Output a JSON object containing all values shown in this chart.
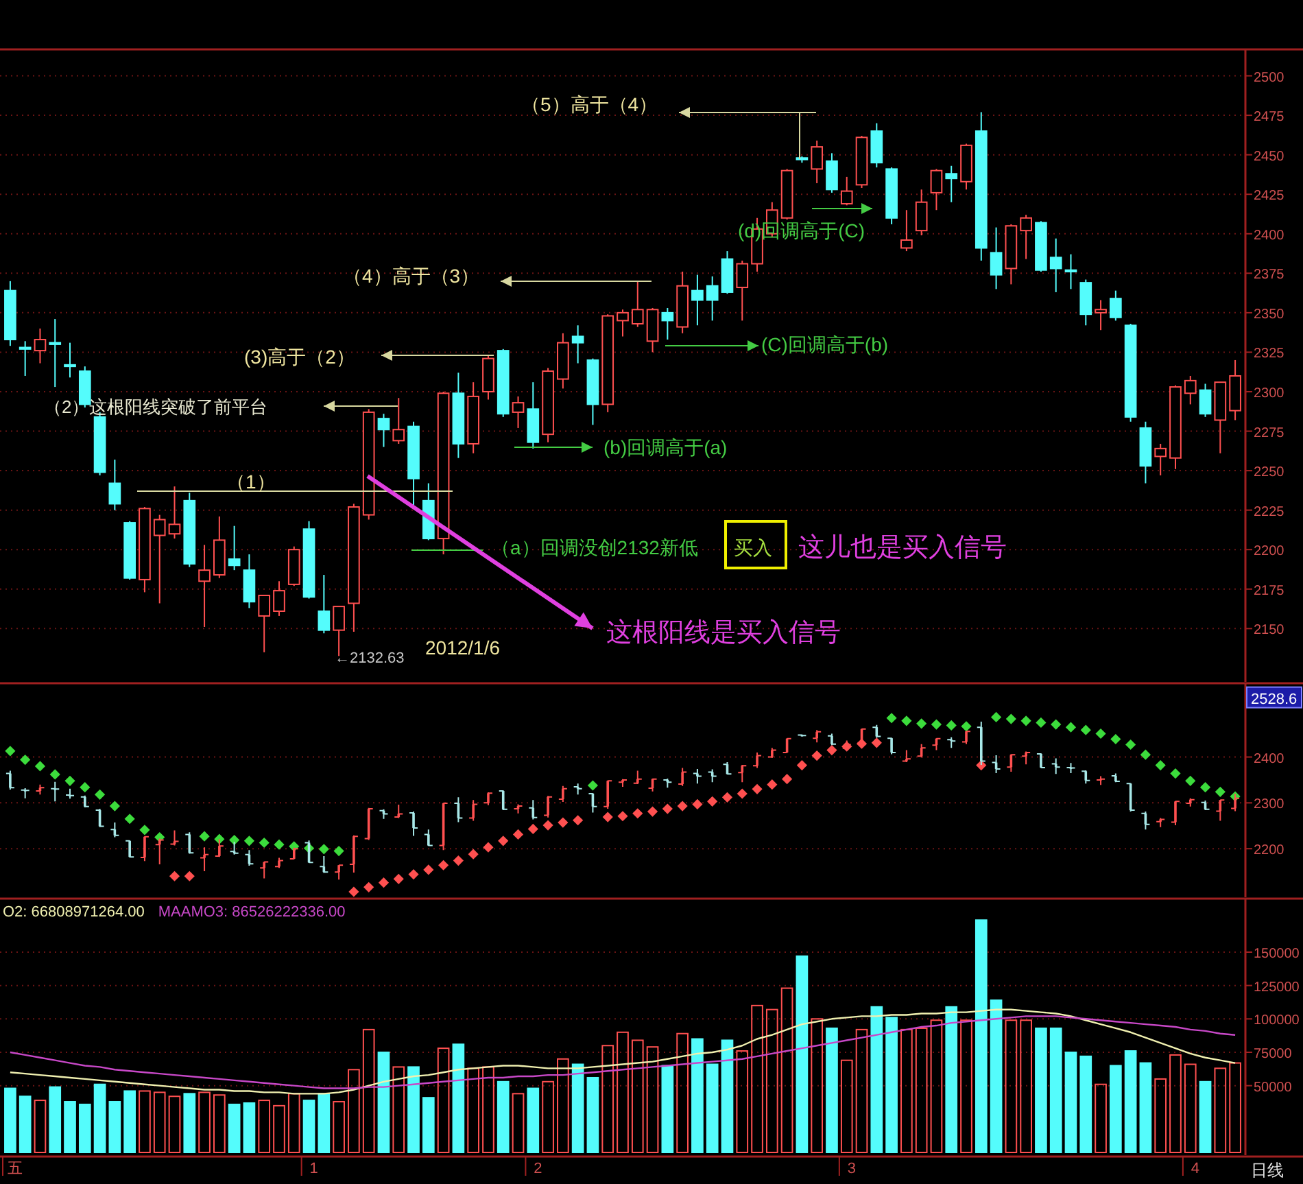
{
  "chart_data": [
    {
      "type": "candlestick",
      "categories": [
        null,
        null,
        null,
        null,
        null,
        null,
        null,
        null,
        null,
        null,
        null,
        null,
        null,
        null,
        null,
        null,
        null,
        null,
        null,
        null,
        null,
        null,
        null,
        null,
        null,
        null,
        null,
        null,
        null,
        null,
        null,
        null,
        null,
        null,
        null,
        null,
        null,
        null,
        null,
        null,
        null,
        null,
        null,
        null,
        null,
        null,
        null,
        null,
        null,
        null,
        null,
        null,
        null,
        null,
        null,
        null,
        null,
        null,
        null,
        null,
        null,
        null,
        null,
        null,
        null,
        null,
        null,
        null,
        null,
        null,
        null,
        null,
        null,
        null,
        null,
        null,
        null,
        null,
        null,
        null,
        null,
        null,
        null
      ],
      "ohlc": [
        [
          2364,
          2370,
          2329,
          2333
        ],
        [
          2328,
          2332,
          2310,
          2327
        ],
        [
          2326,
          2340,
          2318,
          2333
        ],
        [
          2331,
          2346,
          2303,
          2330
        ],
        [
          2317,
          2331,
          2309,
          2316
        ],
        [
          2313,
          2316,
          2290,
          2292
        ],
        [
          2284,
          2287,
          2247,
          2249
        ],
        [
          2242,
          2257,
          2225,
          2229
        ],
        [
          2217,
          2218,
          2181,
          2182
        ],
        [
          2181,
          2227,
          2173,
          2226
        ],
        [
          2209,
          2222,
          2166,
          2219
        ],
        [
          2210,
          2240,
          2207,
          2216
        ],
        [
          2231,
          2236,
          2189,
          2191
        ],
        [
          2180,
          2203,
          2151,
          2187
        ],
        [
          2184,
          2221,
          2182,
          2206
        ],
        [
          2194,
          2215,
          2187,
          2190
        ],
        [
          2187,
          2197,
          2163,
          2167
        ],
        [
          2158,
          2171,
          2135,
          2171
        ],
        [
          2161,
          2180,
          2158,
          2174
        ],
        [
          2178,
          2202,
          2177,
          2200
        ],
        [
          2213,
          2218,
          2169,
          2170
        ],
        [
          2161,
          2184,
          2147,
          2149
        ],
        [
          2149,
          2164,
          2132.63,
          2164
        ],
        [
          2166,
          2229,
          2148,
          2227
        ],
        [
          2222,
          2289,
          2219,
          2287
        ],
        [
          2283,
          2286,
          2265,
          2276
        ],
        [
          2269,
          2296,
          2267,
          2276
        ],
        [
          2278,
          2281,
          2228,
          2245
        ],
        [
          2231,
          2242,
          2206,
          2207
        ],
        [
          2207,
          2300,
          2197,
          2299
        ],
        [
          2299,
          2312,
          2258,
          2267
        ],
        [
          2267,
          2306,
          2261,
          2297
        ],
        [
          2300,
          2323,
          2295,
          2321
        ],
        [
          2326,
          2327,
          2284,
          2286
        ],
        [
          2287,
          2297,
          2277,
          2293
        ],
        [
          2289,
          2306,
          2264,
          2268
        ],
        [
          2273,
          2315,
          2268,
          2313
        ],
        [
          2308,
          2337,
          2302,
          2331
        ],
        [
          2335,
          2342,
          2318,
          2331
        ],
        [
          2320,
          2321,
          2279,
          2292
        ],
        [
          2292,
          2349,
          2287,
          2348
        ],
        [
          2345,
          2352,
          2335,
          2350
        ],
        [
          2343,
          2370,
          2341,
          2352
        ],
        [
          2332,
          2353,
          2325,
          2352
        ],
        [
          2350,
          2353,
          2333,
          2345
        ],
        [
          2341,
          2376,
          2337,
          2367
        ],
        [
          2364,
          2374,
          2342,
          2358
        ],
        [
          2367,
          2373,
          2345,
          2358
        ],
        [
          2384,
          2389,
          2362,
          2363
        ],
        [
          2366,
          2383,
          2345,
          2381
        ],
        [
          2381,
          2410,
          2376,
          2403
        ],
        [
          2400,
          2420,
          2398,
          2415
        ],
        [
          2410,
          2441,
          2409,
          2440
        ],
        [
          2448,
          2449,
          2445,
          2447
        ],
        [
          2441,
          2459,
          2432,
          2455
        ],
        [
          2446,
          2451,
          2426,
          2428
        ],
        [
          2419,
          2436,
          2418,
          2427
        ],
        [
          2431,
          2462,
          2429,
          2461
        ],
        [
          2465,
          2470,
          2442,
          2445
        ],
        [
          2441,
          2442,
          2406,
          2410
        ],
        [
          2391,
          2415,
          2389,
          2396
        ],
        [
          2402,
          2428,
          2399,
          2420
        ],
        [
          2426,
          2441,
          2415,
          2440
        ],
        [
          2438,
          2443,
          2420,
          2435
        ],
        [
          2433,
          2457,
          2428,
          2456
        ],
        [
          2465,
          2477,
          2383,
          2391
        ],
        [
          2388,
          2404,
          2365,
          2374
        ],
        [
          2378,
          2406,
          2368,
          2405
        ],
        [
          2402,
          2412,
          2384,
          2410
        ],
        [
          2407,
          2408,
          2376,
          2377
        ],
        [
          2385,
          2397,
          2363,
          2378
        ],
        [
          2377,
          2387,
          2365,
          2376
        ],
        [
          2369,
          2371,
          2342,
          2349
        ],
        [
          2350,
          2358,
          2339,
          2352
        ],
        [
          2359,
          2364,
          2345,
          2347
        ],
        [
          2342,
          2343,
          2281,
          2284
        ],
        [
          2277,
          2281,
          2242,
          2253
        ],
        [
          2259,
          2267,
          2247,
          2264
        ],
        [
          2258,
          2304,
          2251,
          2303
        ],
        [
          2299,
          2310,
          2292,
          2307
        ],
        [
          2301,
          2305,
          2284,
          2286
        ],
        [
          2282,
          2306,
          2261,
          2306
        ],
        [
          2288,
          2320,
          2282,
          2310
        ]
      ],
      "colors": [
        "#54fcfc",
        "#54fcfc",
        "#ff5050",
        "#54fcfc",
        "#54fcfc",
        "#54fcfc",
        "#54fcfc",
        "#54fcfc",
        "#54fcfc",
        "#ff5050",
        "#ff5050",
        "#ff5050",
        "#54fcfc",
        "#ff5050",
        "#ff5050",
        "#54fcfc",
        "#54fcfc",
        "#ff5050",
        "#ff5050",
        "#ff5050",
        "#54fcfc",
        "#54fcfc",
        "#ff5050",
        "#ff5050",
        "#ff5050",
        "#54fcfc",
        "#ff5050",
        "#54fcfc",
        "#54fcfc",
        "#ff5050",
        "#54fcfc",
        "#ff5050",
        "#ff5050",
        "#54fcfc",
        "#ff5050",
        "#54fcfc",
        "#ff5050",
        "#ff5050",
        "#54fcfc",
        "#54fcfc",
        "#ff5050",
        "#ff5050",
        "#ff5050",
        "#ff5050",
        "#54fcfc",
        "#ff5050",
        "#54fcfc",
        "#54fcfc",
        "#54fcfc",
        "#ff5050",
        "#ff5050",
        "#ff5050",
        "#ff5050",
        "#54fcfc",
        "#ff5050",
        "#54fcfc",
        "#ff5050",
        "#ff5050",
        "#54fcfc",
        "#54fcfc",
        "#ff5050",
        "#ff5050",
        "#ff5050",
        "#54fcfc",
        "#ff5050",
        "#54fcfc",
        "#54fcfc",
        "#ff5050",
        "#ff5050",
        "#54fcfc",
        "#54fcfc",
        "#54fcfc",
        "#54fcfc",
        "#ff5050",
        "#54fcfc",
        "#54fcfc",
        "#54fcfc",
        "#ff5050",
        "#ff5050",
        "#ff5050",
        "#54fcfc",
        "#ff5050",
        "#ff5050"
      ],
      "ylim": [
        2118,
        2515
      ],
      "yticks": [
        2150,
        2175,
        2200,
        2225,
        2250,
        2275,
        2300,
        2325,
        2350,
        2375,
        2400,
        2425,
        2450,
        2475,
        2500
      ],
      "grid": "y",
      "tick_labels": "y",
      "annotations": [
        "（5）高于（4）",
        "（4）高于（3）",
        "(3)高于（2）",
        "（2）这根阳线突破了前平台",
        "（1）",
        "(d)回调高于(C)",
        "(C)回调高于(b)",
        "(b)回调高于(a)",
        "（a）回调没创2132新低",
        "买入",
        "这儿也是买入信号",
        "这根阳线是买入信号",
        "←2132.63",
        "2012/1/6"
      ]
    },
    {
      "type": "candlestick",
      "categories": [
        null,
        null,
        null,
        null,
        null,
        null,
        null,
        null,
        null,
        null,
        null,
        null,
        null,
        null,
        null,
        null,
        null,
        null,
        null,
        null,
        null,
        null,
        null,
        null,
        null,
        null,
        null,
        null,
        null,
        null,
        null,
        null,
        null,
        null,
        null,
        null,
        null,
        null,
        null,
        null,
        null,
        null,
        null,
        null,
        null,
        null,
        null,
        null,
        null,
        null,
        null,
        null,
        null,
        null,
        null,
        null,
        null,
        null,
        null,
        null,
        null,
        null,
        null,
        null,
        null,
        null,
        null,
        null,
        null,
        null,
        null,
        null,
        null,
        null,
        null,
        null,
        null,
        null,
        null,
        null,
        null,
        null,
        null
      ],
      "ohlc": [
        [
          2364,
          2370,
          2329,
          2333
        ],
        [
          2328,
          2332,
          2310,
          2327
        ],
        [
          2326,
          2340,
          2318,
          2333
        ],
        [
          2331,
          2346,
          2303,
          2330
        ],
        [
          2317,
          2331,
          2309,
          2316
        ],
        [
          2313,
          2316,
          2290,
          2292
        ],
        [
          2284,
          2287,
          2247,
          2249
        ],
        [
          2242,
          2257,
          2225,
          2229
        ],
        [
          2217,
          2218,
          2181,
          2182
        ],
        [
          2181,
          2227,
          2173,
          2226
        ],
        [
          2209,
          2222,
          2166,
          2219
        ],
        [
          2210,
          2240,
          2207,
          2216
        ],
        [
          2231,
          2236,
          2189,
          2191
        ],
        [
          2180,
          2203,
          2151,
          2187
        ],
        [
          2184,
          2221,
          2182,
          2206
        ],
        [
          2194,
          2215,
          2187,
          2190
        ],
        [
          2187,
          2197,
          2163,
          2167
        ],
        [
          2158,
          2171,
          2135,
          2171
        ],
        [
          2161,
          2180,
          2158,
          2174
        ],
        [
          2178,
          2202,
          2177,
          2200
        ],
        [
          2213,
          2218,
          2169,
          2170
        ],
        [
          2161,
          2184,
          2147,
          2149
        ],
        [
          2149,
          2164,
          2132.63,
          2164
        ],
        [
          2166,
          2229,
          2148,
          2227
        ],
        [
          2222,
          2289,
          2219,
          2287
        ],
        [
          2283,
          2286,
          2265,
          2276
        ],
        [
          2269,
          2296,
          2267,
          2276
        ],
        [
          2278,
          2281,
          2228,
          2245
        ],
        [
          2231,
          2242,
          2206,
          2207
        ],
        [
          2207,
          2300,
          2197,
          2299
        ],
        [
          2299,
          2312,
          2258,
          2267
        ],
        [
          2267,
          2306,
          2261,
          2297
        ],
        [
          2300,
          2323,
          2295,
          2321
        ],
        [
          2326,
          2327,
          2284,
          2286
        ],
        [
          2287,
          2297,
          2277,
          2293
        ],
        [
          2289,
          2306,
          2264,
          2268
        ],
        [
          2273,
          2315,
          2268,
          2313
        ],
        [
          2308,
          2337,
          2302,
          2331
        ],
        [
          2335,
          2342,
          2318,
          2331
        ],
        [
          2320,
          2321,
          2279,
          2292
        ],
        [
          2292,
          2349,
          2287,
          2348
        ],
        [
          2345,
          2352,
          2335,
          2350
        ],
        [
          2343,
          2370,
          2341,
          2352
        ],
        [
          2332,
          2353,
          2325,
          2352
        ],
        [
          2350,
          2353,
          2333,
          2345
        ],
        [
          2341,
          2376,
          2337,
          2367
        ],
        [
          2364,
          2374,
          2342,
          2358
        ],
        [
          2367,
          2373,
          2345,
          2358
        ],
        [
          2384,
          2389,
          2362,
          2363
        ],
        [
          2366,
          2383,
          2345,
          2381
        ],
        [
          2381,
          2410,
          2376,
          2403
        ],
        [
          2400,
          2420,
          2398,
          2415
        ],
        [
          2410,
          2441,
          2409,
          2440
        ],
        [
          2448,
          2449,
          2445,
          2447
        ],
        [
          2441,
          2459,
          2432,
          2455
        ],
        [
          2446,
          2451,
          2426,
          2428
        ],
        [
          2419,
          2436,
          2418,
          2427
        ],
        [
          2431,
          2462,
          2429,
          2461
        ],
        [
          2465,
          2470,
          2442,
          2445
        ],
        [
          2441,
          2442,
          2406,
          2410
        ],
        [
          2391,
          2415,
          2389,
          2396
        ],
        [
          2402,
          2428,
          2399,
          2420
        ],
        [
          2426,
          2441,
          2415,
          2440
        ],
        [
          2438,
          2443,
          2420,
          2435
        ],
        [
          2433,
          2457,
          2428,
          2456
        ],
        [
          2465,
          2477,
          2383,
          2391
        ],
        [
          2388,
          2404,
          2365,
          2374
        ],
        [
          2378,
          2406,
          2368,
          2405
        ],
        [
          2402,
          2412,
          2384,
          2410
        ],
        [
          2407,
          2408,
          2376,
          2377
        ],
        [
          2385,
          2397,
          2363,
          2378
        ],
        [
          2377,
          2387,
          2365,
          2376
        ],
        [
          2369,
          2371,
          2342,
          2349
        ],
        [
          2350,
          2358,
          2339,
          2352
        ],
        [
          2359,
          2364,
          2345,
          2347
        ],
        [
          2342,
          2343,
          2281,
          2284
        ],
        [
          2277,
          2281,
          2242,
          2253
        ],
        [
          2259,
          2267,
          2247,
          2264
        ],
        [
          2258,
          2304,
          2251,
          2303
        ],
        [
          2299,
          2310,
          2292,
          2307
        ],
        [
          2301,
          2305,
          2284,
          2286
        ],
        [
          2282,
          2306,
          2261,
          2306
        ],
        [
          2288,
          2320,
          2282,
          2310
        ]
      ],
      "colors": [
        "#a8e8e8",
        "#a8e8e8",
        "#ff5050",
        "#a8e8e8",
        "#a8e8e8",
        "#a8e8e8",
        "#a8e8e8",
        "#a8e8e8",
        "#a8e8e8",
        "#ff5050",
        "#ff5050",
        "#ff5050",
        "#a8e8e8",
        "#ff5050",
        "#ff5050",
        "#a8e8e8",
        "#a8e8e8",
        "#ff5050",
        "#ff5050",
        "#ff5050",
        "#a8e8e8",
        "#a8e8e8",
        "#ff5050",
        "#ff5050",
        "#ff5050",
        "#a8e8e8",
        "#ff5050",
        "#a8e8e8",
        "#a8e8e8",
        "#ff5050",
        "#a8e8e8",
        "#ff5050",
        "#ff5050",
        "#a8e8e8",
        "#ff5050",
        "#a8e8e8",
        "#ff5050",
        "#ff5050",
        "#a8e8e8",
        "#a8e8e8",
        "#ff5050",
        "#ff5050",
        "#ff5050",
        "#ff5050",
        "#a8e8e8",
        "#ff5050",
        "#a8e8e8",
        "#a8e8e8",
        "#a8e8e8",
        "#ff5050",
        "#ff5050",
        "#ff5050",
        "#ff5050",
        "#a8e8e8",
        "#ff5050",
        "#a8e8e8",
        "#ff5050",
        "#ff5050",
        "#a8e8e8",
        "#a8e8e8",
        "#ff5050",
        "#ff5050",
        "#ff5050",
        "#a8e8e8",
        "#ff5050",
        "#a8e8e8",
        "#a8e8e8",
        "#ff5050",
        "#ff5050",
        "#a8e8e8",
        "#a8e8e8",
        "#a8e8e8",
        "#a8e8e8",
        "#ff5050",
        "#a8e8e8",
        "#a8e8e8",
        "#a8e8e8",
        "#ff5050",
        "#ff5050",
        "#ff5050",
        "#a8e8e8",
        "#ff5050",
        "#ff5050"
      ],
      "series": [
        {
          "type": "scatter",
          "color": "#3cdc3c",
          "values": [
            2413,
            2394,
            2380,
            2362,
            2348,
            2334,
            2318,
            2293,
            2265,
            2241,
            2225,
            null,
            null,
            2227,
            2221,
            2219,
            2217,
            2213,
            2209,
            2205,
            2201,
            2199,
            2195,
            null,
            null,
            null,
            null,
            null,
            null,
            null,
            null,
            null,
            null,
            null,
            null,
            null,
            null,
            null,
            null,
            2338,
            null,
            null,
            null,
            null,
            null,
            null,
            null,
            null,
            null,
            null,
            null,
            null,
            null,
            null,
            null,
            null,
            null,
            null,
            null,
            2485,
            2479,
            2473,
            2471,
            2469,
            2467,
            null,
            2487,
            2483,
            2479,
            2475,
            2471,
            2465,
            2459,
            2451,
            2439,
            2427,
            2405,
            2382,
            2364,
            2348,
            2334,
            2324,
            2314
          ]
        },
        {
          "type": "scatter",
          "color": "#ff5050",
          "values": [
            null,
            null,
            null,
            null,
            null,
            null,
            null,
            null,
            null,
            null,
            null,
            2140,
            2140,
            null,
            null,
            null,
            null,
            null,
            null,
            null,
            null,
            null,
            null,
            2106,
            2116,
            2126,
            2134,
            2144,
            2154,
            2164,
            2174,
            2188,
            2203,
            2217,
            2231,
            2243,
            2251,
            2257,
            2262,
            null,
            2269,
            2271,
            2277,
            2281,
            2287,
            2293,
            2297,
            2303,
            2312,
            2320,
            2330,
            2340,
            2352,
            2382,
            2403,
            2415,
            2423,
            2429,
            2431,
            null,
            null,
            null,
            null,
            null,
            null,
            2382,
            null,
            null,
            null,
            null,
            null,
            null,
            null,
            null,
            null,
            null,
            null,
            null,
            null,
            null,
            null,
            null,
            null
          ]
        }
      ],
      "marker": "diamond",
      "ylim": [
        2100,
        2555
      ],
      "yticks": [
        2200,
        2300,
        2400
      ],
      "grid": "y",
      "tick_labels": "y",
      "annotations": [
        {
          "text": "2528.6",
          "y": 2528.6
        }
      ]
    },
    {
      "type": "bar",
      "categories": [
        "五",
        null,
        null,
        null,
        null,
        null,
        null,
        null,
        null,
        null,
        null,
        null,
        null,
        null,
        null,
        null,
        null,
        null,
        null,
        null,
        "1",
        null,
        null,
        null,
        null,
        null,
        null,
        null,
        null,
        null,
        null,
        null,
        null,
        null,
        null,
        "2",
        null,
        null,
        null,
        null,
        null,
        null,
        null,
        null,
        null,
        null,
        null,
        null,
        null,
        null,
        null,
        null,
        null,
        null,
        null,
        null,
        "3",
        null,
        null,
        null,
        null,
        null,
        null,
        null,
        null,
        null,
        null,
        null,
        null,
        null,
        null,
        null,
        null,
        null,
        null,
        null,
        null,
        null,
        null,
        "4",
        null,
        null,
        null
      ],
      "series": [
        {
          "type": "bar",
          "colors": [
            "#54fcfc",
            "#54fcfc",
            "#ff5050",
            "#54fcfc",
            "#54fcfc",
            "#54fcfc",
            "#54fcfc",
            "#54fcfc",
            "#54fcfc",
            "#ff5050",
            "#ff5050",
            "#ff5050",
            "#54fcfc",
            "#ff5050",
            "#ff5050",
            "#54fcfc",
            "#54fcfc",
            "#ff5050",
            "#ff5050",
            "#ff5050",
            "#54fcfc",
            "#54fcfc",
            "#ff5050",
            "#ff5050",
            "#ff5050",
            "#54fcfc",
            "#ff5050",
            "#54fcfc",
            "#54fcfc",
            "#ff5050",
            "#54fcfc",
            "#ff5050",
            "#ff5050",
            "#54fcfc",
            "#ff5050",
            "#54fcfc",
            "#ff5050",
            "#ff5050",
            "#54fcfc",
            "#54fcfc",
            "#ff5050",
            "#ff5050",
            "#ff5050",
            "#ff5050",
            "#54fcfc",
            "#ff5050",
            "#54fcfc",
            "#54fcfc",
            "#54fcfc",
            "#ff5050",
            "#ff5050",
            "#ff5050",
            "#ff5050",
            "#54fcfc",
            "#ff5050",
            "#54fcfc",
            "#ff5050",
            "#ff5050",
            "#54fcfc",
            "#54fcfc",
            "#ff5050",
            "#ff5050",
            "#ff5050",
            "#54fcfc",
            "#ff5050",
            "#54fcfc",
            "#54fcfc",
            "#ff5050",
            "#ff5050",
            "#54fcfc",
            "#54fcfc",
            "#54fcfc",
            "#54fcfc",
            "#ff5050",
            "#54fcfc",
            "#54fcfc",
            "#54fcfc",
            "#ff5050",
            "#ff5050",
            "#ff5050",
            "#54fcfc",
            "#ff5050",
            "#ff5050"
          ],
          "values": [
            48000,
            42000,
            39000,
            49000,
            38000,
            36000,
            51000,
            38000,
            46000,
            46000,
            45000,
            42000,
            44000,
            45000,
            43000,
            36000,
            37000,
            39000,
            35000,
            44000,
            39000,
            44000,
            38000,
            62000,
            92000,
            75000,
            64000,
            64000,
            41000,
            78000,
            81000,
            63000,
            64000,
            53000,
            44000,
            48000,
            53000,
            70000,
            66000,
            56000,
            80000,
            90000,
            84000,
            79000,
            65000,
            89000,
            85000,
            66000,
            84000,
            76000,
            110000,
            107000,
            123000,
            147000,
            100000,
            93000,
            69000,
            92000,
            109000,
            101000,
            92000,
            93000,
            99000,
            109000,
            99000,
            174000,
            114000,
            99000,
            99000,
            93000,
            93000,
            75000,
            72000,
            51000,
            65000,
            76000,
            67000,
            55000,
            73000,
            66000,
            53000,
            63000,
            67000
          ]
        },
        {
          "type": "line",
          "name": "O2: 66808971264.00",
          "color": "#f0f0b0",
          "values": [
            60000,
            59000,
            58000,
            57000,
            56000,
            55000,
            54000,
            53000,
            52000,
            51000,
            50000,
            49000,
            48000,
            47000,
            47000,
            46000,
            46000,
            45000,
            45000,
            44000,
            44000,
            44000,
            45000,
            47000,
            50000,
            53000,
            55000,
            57000,
            58000,
            60000,
            62000,
            63000,
            64000,
            65000,
            65000,
            64000,
            63000,
            63000,
            63000,
            64000,
            65000,
            66000,
            67000,
            68000,
            70000,
            72000,
            74000,
            75000,
            77000,
            80000,
            85000,
            88000,
            92000,
            96000,
            98000,
            100000,
            101000,
            102000,
            102000,
            103000,
            103000,
            104000,
            104000,
            105000,
            105000,
            106000,
            107000,
            107000,
            106000,
            105000,
            104000,
            102000,
            99000,
            96000,
            93000,
            90000,
            86000,
            82000,
            78000,
            74000,
            71000,
            69000,
            67000
          ]
        },
        {
          "type": "line",
          "name": "MAAMO3: 86526222336.00",
          "color": "#c848c8",
          "values": [
            75000,
            73000,
            71000,
            69000,
            67000,
            65000,
            64000,
            62000,
            61000,
            60000,
            59000,
            58000,
            57000,
            56000,
            55000,
            54000,
            53000,
            52000,
            51000,
            50000,
            49000,
            48000,
            48000,
            48000,
            49000,
            49000,
            50000,
            51000,
            52000,
            53000,
            54000,
            55000,
            56000,
            56000,
            57000,
            57000,
            58000,
            58000,
            59000,
            60000,
            61000,
            62000,
            63000,
            64000,
            65000,
            66000,
            67000,
            68000,
            69000,
            70000,
            72000,
            74000,
            76000,
            78000,
            80000,
            82000,
            84000,
            86000,
            88000,
            90000,
            92000,
            94000,
            95000,
            97000,
            98000,
            99000,
            100000,
            101000,
            102000,
            102000,
            102000,
            101000,
            100000,
            99000,
            98000,
            97000,
            96000,
            95000,
            94000,
            92000,
            91000,
            89000,
            88000
          ]
        }
      ],
      "ylim": [
        0,
        188000
      ],
      "yticks": [
        50000,
        75000,
        100000,
        125000,
        150000
      ],
      "grid": "y",
      "legend": "top left",
      "annotations": [
        "日线"
      ]
    }
  ]
}
